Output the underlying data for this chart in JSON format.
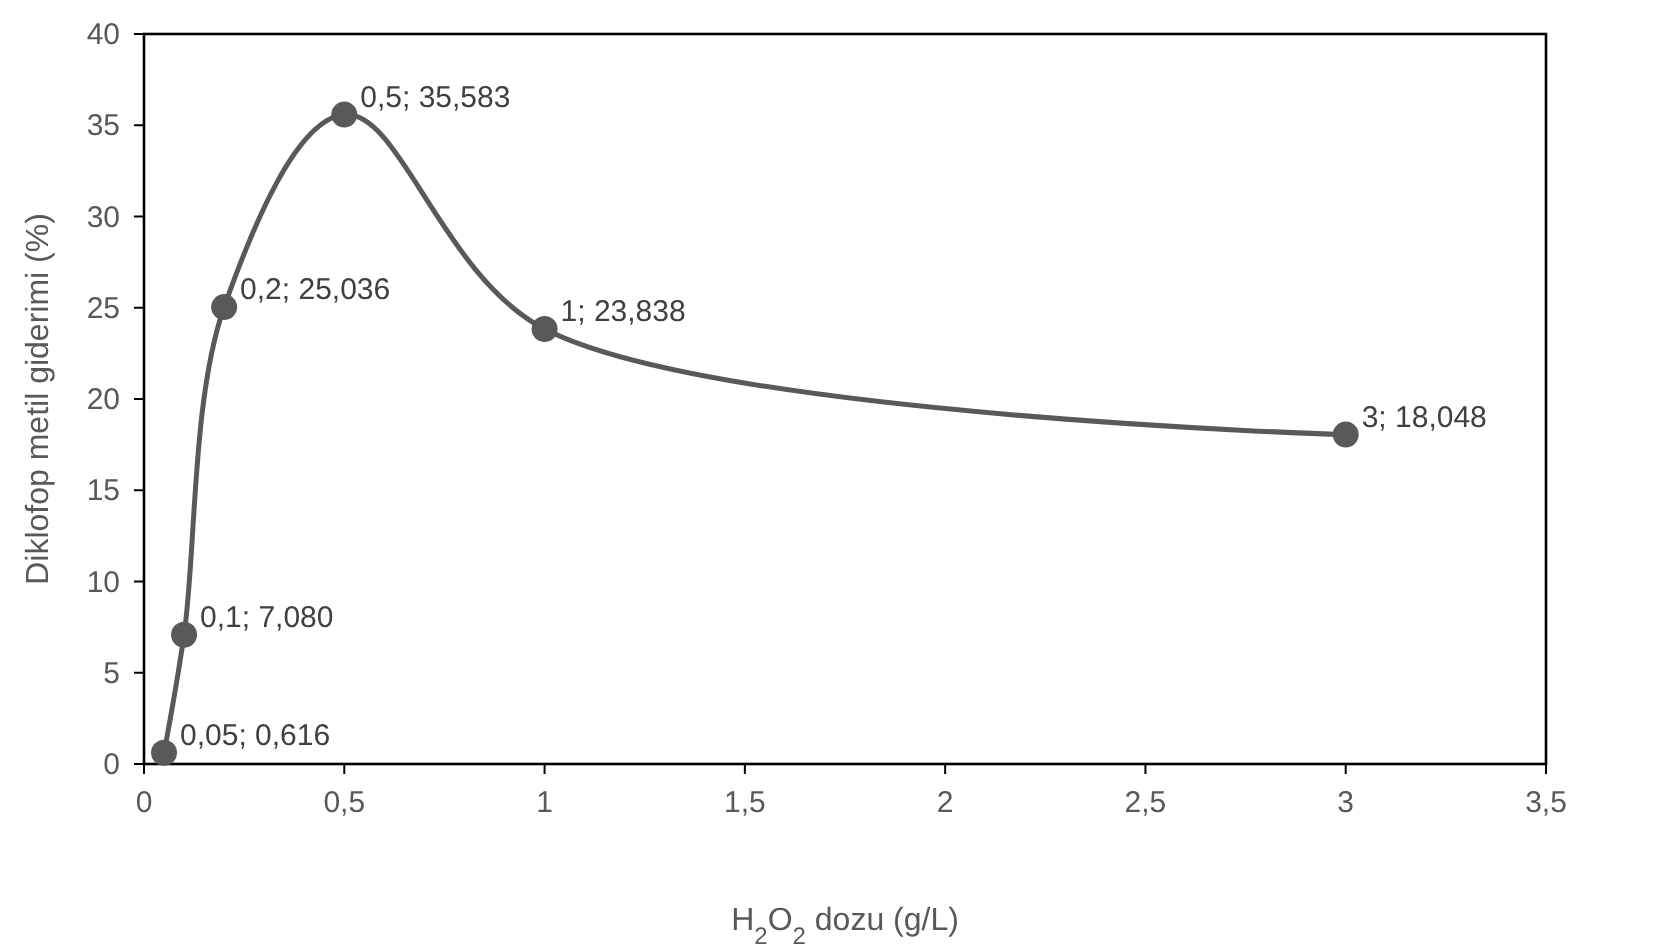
{
  "chart_data": {
    "type": "line",
    "xlabel": "H$_{2}$O$_{2}$ dozu (g/L)",
    "ylabel": "Diklofop metil giderimi (%)",
    "x": [
      0.05,
      0.1,
      0.2,
      0.5,
      1,
      3
    ],
    "series": [
      {
        "color": "#595959",
        "values": [
          0.616,
          7.08,
          25.036,
          35.583,
          23.838,
          18.048
        ],
        "value_labels": [
          "0,05; 0,616",
          "0,1; 7,080",
          "0,2; 25,036",
          "0,5; 35,583",
          "1; 23,838",
          "3; 18,048"
        ]
      }
    ],
    "xlim": [
      0,
      3.5
    ],
    "xticks": [
      0,
      {
        "value": 0.5,
        "label": "0,5"
      },
      1,
      {
        "value": 1.5,
        "label": "1,5"
      },
      2,
      {
        "value": 2.5,
        "label": "2,5"
      },
      3,
      {
        "value": 3.5,
        "label": "3,5"
      }
    ],
    "ylim": [
      0,
      40
    ],
    "yticks": [
      0,
      5,
      10,
      15,
      20,
      25,
      30,
      35,
      40
    ],
    "grid": false,
    "marker": "circle",
    "line_style": "solid"
  }
}
